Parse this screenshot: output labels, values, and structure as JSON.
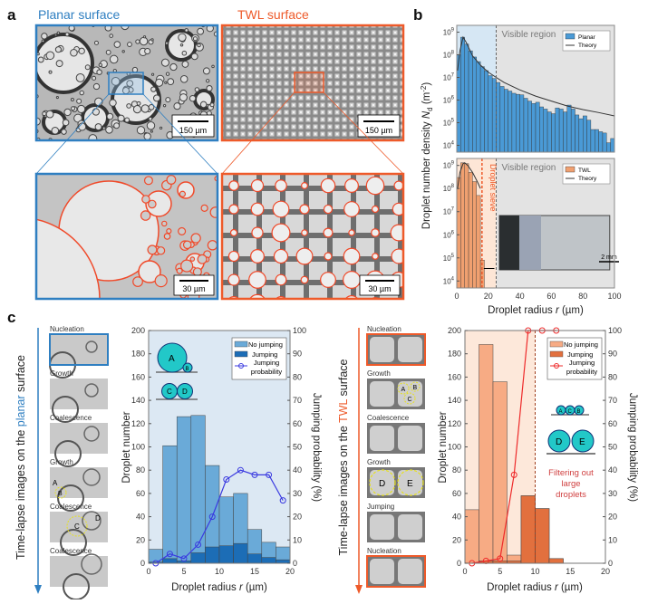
{
  "panel_labels": {
    "a": "a",
    "b": "b",
    "c": "c"
  },
  "panel_a": {
    "planar_title": "Planar surface",
    "twl_title": "TWL surface",
    "scale_top_left": "150 µm",
    "scale_top_right": "150 µm",
    "scale_bottom_left": "30 µm",
    "scale_bottom_right": "30 µm",
    "colors": {
      "planar": "#2f7fc1",
      "twl": "#ee5a2a",
      "droplet_outline": "#f04a2a"
    }
  },
  "panel_b": {
    "ylabel_main": "Droplet number density ",
    "ylabel_sym": "N",
    "ylabel_sub": "d",
    "ylabel_unit": " (m",
    "ylabel_exp": "-2",
    "ylabel_close": ")",
    "xlabel_main": "Droplet radius ",
    "xlabel_sym": "r",
    "xlabel_unit": " (µm)",
    "visible_region_top": "Visible region",
    "visible_region_bottom": "Visible region",
    "droplet_sieve": "Droplet sieve",
    "inset_scale": "2 mm",
    "legend_top": [
      "Planar",
      "Theory"
    ],
    "legend_bottom": [
      "TWL",
      "Theory"
    ]
  },
  "panel_c": {
    "planar_caption_pre": "Time-lapse images on the ",
    "planar_caption_word": "planar",
    "planar_caption_post": " surface",
    "twl_caption_pre": "Time-lapse images on the ",
    "twl_caption_word": "TWL",
    "twl_caption_post": " surface",
    "planar_frames": [
      "Nucleation",
      "Growth",
      "Coalescence",
      "Growth",
      "Coalescence",
      "Coalescence"
    ],
    "twl_frames": [
      "Nucleation",
      "Growth",
      "Coalescence",
      "Growth",
      "Jumping",
      "Nucleation"
    ],
    "planar_frame_marks": [
      "A",
      "B",
      "C",
      "D"
    ],
    "twl_frame_marks": [
      "A",
      "B",
      "C",
      "D",
      "E"
    ],
    "planar_schematic": [
      "A",
      "B",
      "C",
      "D"
    ],
    "twl_schematic": [
      "A",
      "C",
      "B",
      "D",
      "E"
    ],
    "filter_note": [
      "Filtering out",
      "large",
      "droplets"
    ],
    "ylabel_left": "Droplet number",
    "ylabel_right": "Jumping probability (%)",
    "xlabel_main": "Droplet radius ",
    "xlabel_sym": "r",
    "xlabel_unit": " (µm)",
    "legend": [
      "No jumping",
      "Jumping",
      "Jumping",
      "probability"
    ]
  },
  "chart_data": [
    {
      "id": "b-planar",
      "type": "bar",
      "yscale": "log",
      "xlim": [
        0,
        100
      ],
      "ylim": [
        5000,
        2000000000
      ],
      "xticks": [
        0,
        20,
        40,
        60,
        80,
        100
      ],
      "yticks": [
        "10^4",
        "10^5",
        "10^6",
        "10^7",
        "10^8",
        "10^9"
      ],
      "bin_width": 2.5,
      "legend_placement": "top-right",
      "visible_region_start": 25,
      "series": [
        {
          "name": "Planar",
          "color": "#4a9ad6",
          "values": [
            100000000.0,
            600000000.0,
            300000000.0,
            150000000.0,
            80000000.0,
            50000000.0,
            30000000.0,
            20000000.0,
            12000000.0,
            9000000.0,
            6000000.0,
            4000000.0,
            3000000.0,
            2500000.0,
            2000000.0,
            1800000.0,
            1700000.0,
            1200000.0,
            900000.0,
            700000.0,
            800000.0,
            500000.0,
            400000.0,
            300000.0,
            250000.0,
            450000.0,
            400000.0,
            300000.0,
            600000.0,
            400000.0,
            220000.0,
            150000.0,
            200000.0,
            130000.0,
            50000.0,
            50000.0,
            40000.0,
            35000.0,
            13000.0,
            20000.0
          ]
        },
        {
          "name": "Theory",
          "color": "#333333",
          "x": [
            0.5,
            2,
            4,
            6,
            10,
            15,
            20,
            25,
            30,
            40,
            50,
            60,
            70,
            80,
            90,
            100
          ],
          "values": [
            20000000.0,
            150000000.0,
            600000000.0,
            350000000.0,
            90000000.0,
            35000000.0,
            17000000.0,
            10000000.0,
            6000000.0,
            2800000.0,
            1500000.0,
            900000.0,
            550000.0,
            380000.0,
            280000.0,
            200000.0
          ]
        }
      ]
    },
    {
      "id": "b-twl",
      "type": "bar",
      "yscale": "log",
      "xlim": [
        0,
        100
      ],
      "ylim": [
        5000,
        2000000000
      ],
      "xticks": [
        0,
        20,
        40,
        60,
        80,
        100
      ],
      "yticks": [
        "10^4",
        "10^5",
        "10^6",
        "10^7",
        "10^8",
        "10^9"
      ],
      "bin_width": 2.5,
      "legend_placement": "top-right",
      "droplet_sieve": 16,
      "visible_region_start": 25,
      "series": [
        {
          "name": "TWL",
          "color": "#f0a070",
          "values": [
            300000000.0,
            1300000000.0,
            1200000000.0,
            500000000.0,
            200000000.0,
            50000000.0,
            80000.0
          ]
        },
        {
          "name": "Theory",
          "color": "#333333",
          "x": [
            0.5,
            2,
            4,
            5,
            7,
            10,
            13,
            15
          ],
          "values": [
            100000000.0,
            500000000.0,
            1200000000.0,
            1300000000.0,
            1000000000.0,
            500000000.0,
            200000000.0,
            100000000.0
          ]
        }
      ]
    },
    {
      "id": "c-planar",
      "type": "bar",
      "xlim": [
        0,
        20
      ],
      "ylim": [
        0,
        200
      ],
      "y2lim": [
        0,
        100
      ],
      "xticks": [
        0,
        5,
        10,
        15,
        20
      ],
      "yticks": [
        0,
        20,
        40,
        60,
        80,
        100,
        120,
        140,
        160,
        180,
        200
      ],
      "y2ticks": [
        0,
        10,
        20,
        30,
        40,
        50,
        60,
        70,
        80,
        90,
        100
      ],
      "bin_width": 2,
      "legend_placement": "top-right",
      "colors": {
        "bg": "#dce8f3",
        "no_jumping": "#6aaad8",
        "jumping": "#1c6db6",
        "probability": "#3a3ae0"
      },
      "categories": [
        1,
        3,
        5,
        7,
        9,
        11,
        13,
        15,
        17,
        19
      ],
      "series": [
        {
          "name": "No jumping",
          "values": [
            11,
            97,
            124,
            118,
            70,
            42,
            43,
            21,
            13,
            11
          ]
        },
        {
          "name": "Jumping",
          "values": [
            1,
            4,
            2,
            9,
            14,
            15,
            17,
            8,
            5,
            3
          ]
        },
        {
          "name": "Jumping probability",
          "axis": "right",
          "values": [
            0,
            4,
            2,
            8,
            20,
            36,
            40,
            38,
            38,
            27
          ]
        }
      ]
    },
    {
      "id": "c-twl",
      "type": "bar",
      "xlim": [
        0,
        20
      ],
      "ylim": [
        0,
        200
      ],
      "y2lim": [
        0,
        100
      ],
      "xticks": [
        0,
        5,
        10,
        15,
        20
      ],
      "yticks": [
        0,
        20,
        40,
        60,
        80,
        100,
        120,
        140,
        160,
        180,
        200
      ],
      "y2ticks": [
        0,
        10,
        20,
        30,
        40,
        50,
        60,
        70,
        80,
        90,
        100
      ],
      "bin_width": 2,
      "legend_placement": "top-right",
      "filter_threshold": 10,
      "colors": {
        "bg": "#fde8da",
        "no_jumping": "#f7ab84",
        "jumping": "#e2703e",
        "probability": "#ee2a2a"
      },
      "categories": [
        1,
        3,
        5,
        7,
        9,
        11,
        13
      ],
      "series": [
        {
          "name": "No jumping",
          "values": [
            46,
            186,
            154,
            5,
            0,
            0,
            0
          ]
        },
        {
          "name": "Jumping",
          "values": [
            0,
            2,
            2,
            2,
            58,
            47,
            4
          ]
        },
        {
          "name": "Jumping probability",
          "axis": "right",
          "values": [
            0,
            1,
            2,
            38,
            100,
            100,
            100
          ]
        }
      ]
    }
  ]
}
